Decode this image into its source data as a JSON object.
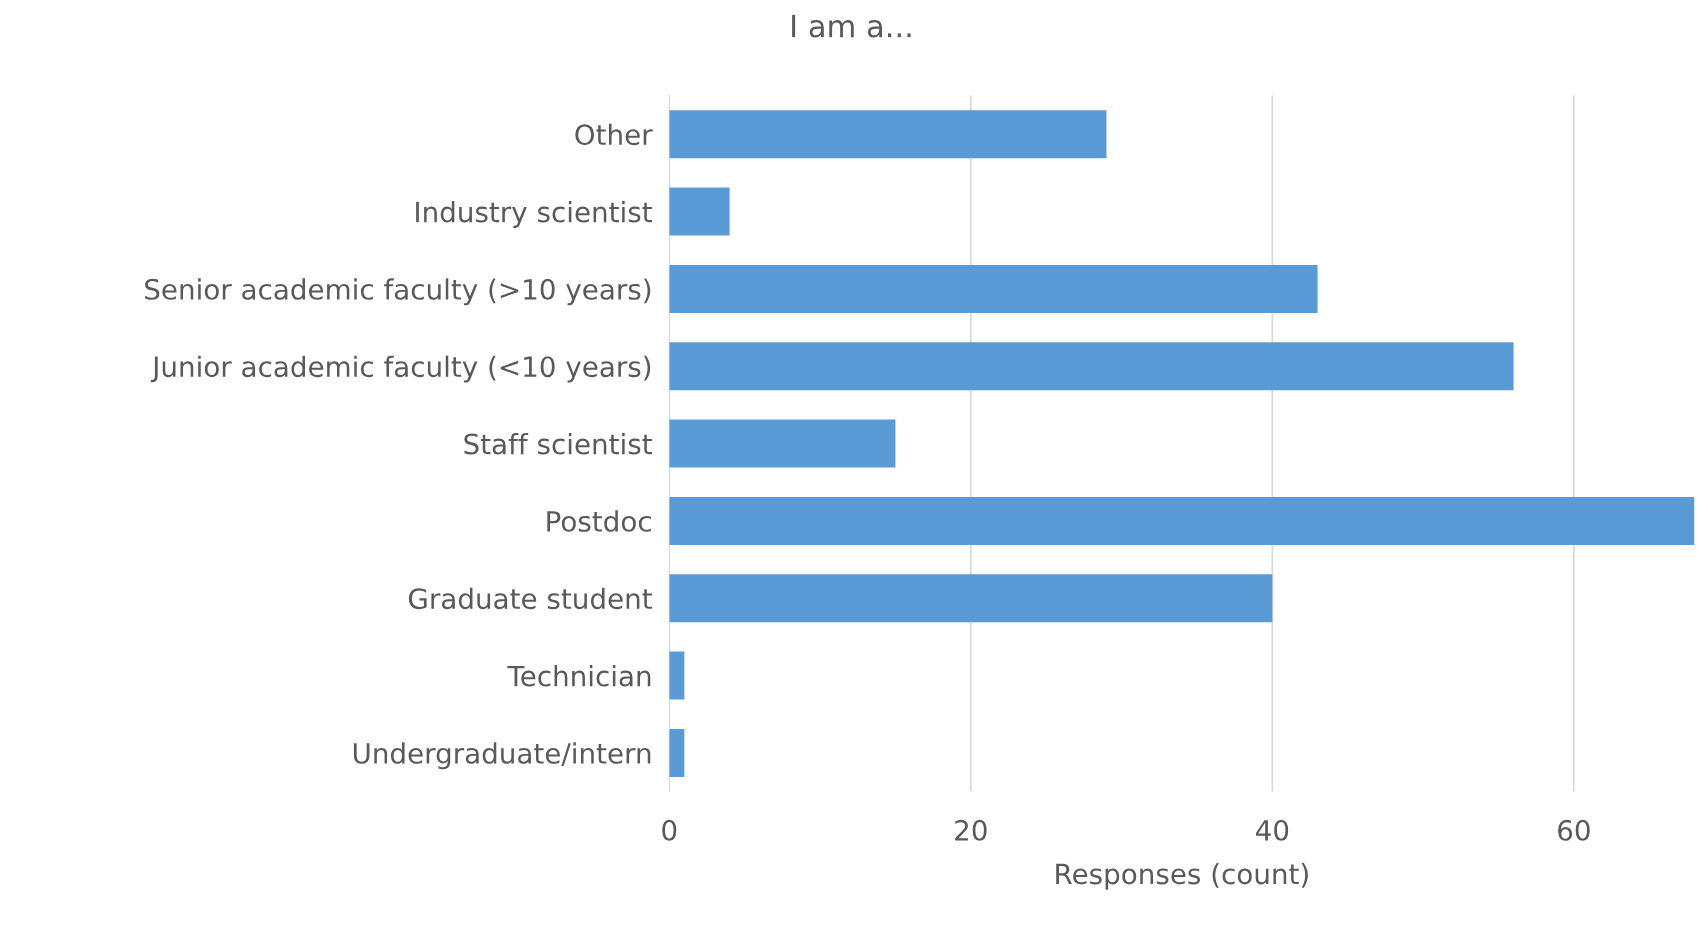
{
  "chart_data": {
    "type": "bar",
    "orientation": "horizontal",
    "title": "I am a...",
    "xlabel": "Responses (count)",
    "categories": [
      "Other",
      "Industry scientist",
      "Senior academic faculty (>10 years)",
      "Junior academic faculty (<10 years)",
      "Staff scientist",
      "Postdoc",
      "Graduate student",
      "Technician",
      "Undergraduate/intern"
    ],
    "values": [
      29,
      4,
      43,
      56,
      15,
      68,
      40,
      1,
      1
    ],
    "color": "#5b9bd5",
    "xlim": [
      0,
      68
    ],
    "xticks": [
      0,
      20,
      40,
      60
    ],
    "grid": "x",
    "legend": false
  }
}
